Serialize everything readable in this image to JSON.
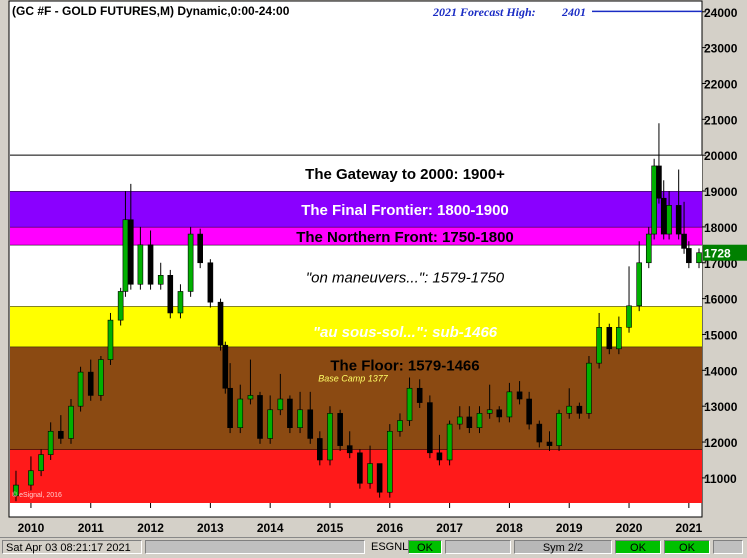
{
  "chart_data": {
    "type": "candlestick",
    "title": "(GC #F - GOLD FUTURES,M) Dynamic,0:00-24:00",
    "forecast_label": "2021 Forecast High:",
    "forecast_value": "2401",
    "forecast_price": 2401,
    "last_price_label": "1728",
    "last_price": 1728,
    "watermark": "© eSignal, 2016",
    "ylim": [
      1030,
      2430
    ],
    "y_ticks": [
      {
        "value": 1100,
        "label": "11000"
      },
      {
        "value": 1200,
        "label": "12000"
      },
      {
        "value": 1300,
        "label": "13000"
      },
      {
        "value": 1400,
        "label": "14000"
      },
      {
        "value": 1500,
        "label": "15000"
      },
      {
        "value": 1600,
        "label": "16000"
      },
      {
        "value": 1700,
        "label": "17000"
      },
      {
        "value": 1800,
        "label": "18000"
      },
      {
        "value": 1900,
        "label": "19000"
      },
      {
        "value": 2000,
        "label": "20000"
      },
      {
        "value": 2100,
        "label": "21000"
      },
      {
        "value": 2200,
        "label": "22000"
      },
      {
        "value": 2300,
        "label": "23000"
      },
      {
        "value": 2400,
        "label": "24000"
      }
    ],
    "x_labels": [
      "2010",
      "2011",
      "2012",
      "2013",
      "2014",
      "2015",
      "2016",
      "2017",
      "2018",
      "2019",
      "2020",
      "2021"
    ],
    "x_start": 2009.65,
    "x_end": 2021.22,
    "zones": [
      {
        "name": "red-zone",
        "from": 1030,
        "to": 1180,
        "color": "#ff1a1a",
        "label": "",
        "label_price": null
      },
      {
        "name": "brown-zone",
        "from": 1180,
        "to": 1466,
        "color": "#8b4a12",
        "label": "\"au sous-sol...\":  sub-1466",
        "label_price": 1510,
        "label_color": "#ffffff",
        "italic": true
      },
      {
        "name": "yellow-zone",
        "from": 1466,
        "to": 1579,
        "color": "#ffff00",
        "label": "The Floor:  1579-1466",
        "label_price": 1416,
        "label_color": "#000000",
        "italic": false
      },
      {
        "name": "white-zone",
        "from": 1579,
        "to": 1750,
        "color": "#ffffff",
        "label": "\"on maneuvers...\":  1579-1750",
        "label_price": 1662,
        "label_color": "#000000",
        "italic": true
      },
      {
        "name": "magenta-zone",
        "from": 1750,
        "to": 1800,
        "color": "#ff00ff",
        "label": "The Northern Front:  1750-1800",
        "label_price": 1775,
        "label_color": "#000000",
        "italic": false
      },
      {
        "name": "purple-zone",
        "from": 1800,
        "to": 1900,
        "color": "#8a00ff",
        "label": "The Final Frontier:  1800-1900",
        "label_price": 1850,
        "label_color": "#ffffff",
        "italic": false
      },
      {
        "name": "gateway-zone",
        "from": 1900,
        "to": 2000,
        "color": "#ffffff",
        "label": "The Gateway to 2000:  1900+",
        "label_price": 1950,
        "label_color": "#000000",
        "italic": false
      }
    ],
    "base_camp": {
      "label": "Base Camp 1377",
      "price": 1377,
      "color": "#ffff66"
    },
    "candles": [
      [
        2009.75,
        1050,
        1120,
        1080
      ],
      [
        2010.0,
        1080,
        1160,
        1120
      ],
      [
        2010.17,
        1120,
        1180,
        1165
      ],
      [
        2010.33,
        1165,
        1255,
        1230
      ],
      [
        2010.5,
        1230,
        1275,
        1210
      ],
      [
        2010.67,
        1210,
        1320,
        1300
      ],
      [
        2010.83,
        1300,
        1410,
        1395
      ],
      [
        2011.0,
        1395,
        1430,
        1330
      ],
      [
        2011.17,
        1330,
        1440,
        1430
      ],
      [
        2011.33,
        1430,
        1560,
        1540
      ],
      [
        2011.5,
        1540,
        1630,
        1620
      ],
      [
        2011.58,
        1620,
        1900,
        1820
      ],
      [
        2011.67,
        1820,
        1920,
        1640
      ],
      [
        2011.83,
        1640,
        1800,
        1750
      ],
      [
        2012.0,
        1750,
        1790,
        1640
      ],
      [
        2012.17,
        1640,
        1700,
        1665
      ],
      [
        2012.33,
        1665,
        1680,
        1560
      ],
      [
        2012.5,
        1560,
        1640,
        1620
      ],
      [
        2012.67,
        1620,
        1800,
        1780
      ],
      [
        2012.83,
        1780,
        1795,
        1700
      ],
      [
        2013.0,
        1700,
        1710,
        1590
      ],
      [
        2013.17,
        1590,
        1600,
        1470
      ],
      [
        2013.25,
        1470,
        1480,
        1350
      ],
      [
        2013.33,
        1350,
        1420,
        1240
      ],
      [
        2013.5,
        1240,
        1360,
        1320
      ],
      [
        2013.67,
        1320,
        1430,
        1330
      ],
      [
        2013.83,
        1330,
        1340,
        1210
      ],
      [
        2014.0,
        1210,
        1330,
        1290
      ],
      [
        2014.17,
        1290,
        1390,
        1320
      ],
      [
        2014.33,
        1320,
        1330,
        1240
      ],
      [
        2014.5,
        1240,
        1340,
        1290
      ],
      [
        2014.67,
        1290,
        1340,
        1210
      ],
      [
        2014.83,
        1210,
        1230,
        1150
      ],
      [
        2015.0,
        1150,
        1300,
        1280
      ],
      [
        2015.17,
        1280,
        1290,
        1190
      ],
      [
        2015.33,
        1190,
        1230,
        1170
      ],
      [
        2015.5,
        1170,
        1180,
        1085
      ],
      [
        2015.67,
        1085,
        1190,
        1140
      ],
      [
        2015.83,
        1140,
        1140,
        1060
      ],
      [
        2016.0,
        1060,
        1250,
        1230
      ],
      [
        2016.17,
        1230,
        1280,
        1260
      ],
      [
        2016.33,
        1260,
        1380,
        1350
      ],
      [
        2016.5,
        1350,
        1375,
        1310
      ],
      [
        2016.67,
        1310,
        1330,
        1170
      ],
      [
        2016.83,
        1170,
        1220,
        1150
      ],
      [
        2017.0,
        1150,
        1260,
        1250
      ],
      [
        2017.17,
        1250,
        1300,
        1270
      ],
      [
        2017.33,
        1270,
        1300,
        1240
      ],
      [
        2017.5,
        1240,
        1300,
        1280
      ],
      [
        2017.67,
        1280,
        1360,
        1290
      ],
      [
        2017.83,
        1290,
        1300,
        1270
      ],
      [
        2018.0,
        1270,
        1365,
        1340
      ],
      [
        2018.17,
        1340,
        1370,
        1320
      ],
      [
        2018.33,
        1320,
        1340,
        1250
      ],
      [
        2018.5,
        1250,
        1260,
        1200
      ],
      [
        2018.67,
        1200,
        1230,
        1190
      ],
      [
        2018.83,
        1190,
        1290,
        1280
      ],
      [
        2019.0,
        1280,
        1350,
        1300
      ],
      [
        2019.17,
        1300,
        1310,
        1280
      ],
      [
        2019.33,
        1280,
        1440,
        1420
      ],
      [
        2019.5,
        1420,
        1560,
        1520
      ],
      [
        2019.67,
        1520,
        1530,
        1460
      ],
      [
        2019.83,
        1460,
        1550,
        1520
      ],
      [
        2020.0,
        1520,
        1690,
        1580
      ],
      [
        2020.17,
        1580,
        1760,
        1700
      ],
      [
        2020.33,
        1700,
        1800,
        1780
      ],
      [
        2020.42,
        1780,
        1990,
        1970
      ],
      [
        2020.5,
        1970,
        2089,
        1880
      ],
      [
        2020.58,
        1880,
        1930,
        1780
      ],
      [
        2020.67,
        1780,
        1900,
        1860
      ],
      [
        2020.83,
        1860,
        1960,
        1780
      ],
      [
        2020.92,
        1780,
        1870,
        1740
      ],
      [
        2021.0,
        1740,
        1760,
        1700
      ],
      [
        2021.17,
        1700,
        1740,
        1728
      ]
    ]
  },
  "status": {
    "timestamp": "Sat Apr 03 08:21:17 2021",
    "esgnl_label": "ESGNL:",
    "ok1": "OK",
    "sym": "Sym 2/2",
    "ok2": "OK",
    "ok3": "OK"
  }
}
